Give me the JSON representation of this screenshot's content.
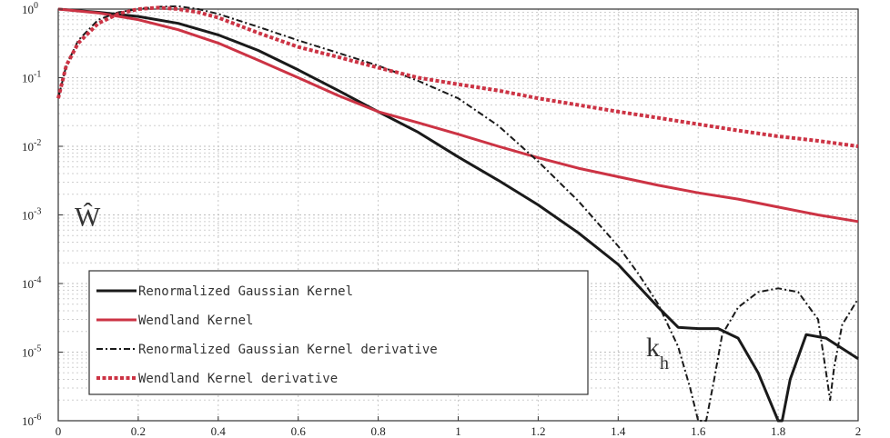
{
  "chart_data": {
    "type": "line",
    "title": "",
    "xlabel": "k_h",
    "ylabel": "Ŵ",
    "xlim": [
      0,
      2
    ],
    "ylim": [
      1e-06,
      1
    ],
    "yscale": "log",
    "grid": true,
    "legend_position": "bottom-left",
    "x_ticks": [
      "0",
      "0.2",
      "0.4",
      "0.6",
      "0.8",
      "1",
      "1.2",
      "1.4",
      "1.6",
      "1.8",
      "2"
    ],
    "y_ticks": [
      "10^0",
      "10^-1",
      "10^-2",
      "10^-3",
      "10^-4",
      "10^-5",
      "10^-6"
    ],
    "series": [
      {
        "name": "Renormalized Gaussian Kernel",
        "color": "#1a1a1a",
        "style": "solid",
        "x": [
          0,
          0.1,
          0.2,
          0.3,
          0.4,
          0.5,
          0.6,
          0.7,
          0.8,
          0.9,
          1.0,
          1.1,
          1.2,
          1.3,
          1.4,
          1.5,
          1.55,
          1.6,
          1.65,
          1.7,
          1.75,
          1.8,
          1.81,
          1.83,
          1.87,
          1.92,
          2.0
        ],
        "y": [
          1.0,
          0.9,
          0.78,
          0.62,
          0.42,
          0.25,
          0.13,
          0.065,
          0.032,
          0.016,
          0.007,
          0.0032,
          0.0014,
          0.00055,
          0.00019,
          4.5e-05,
          2.3e-05,
          2.2e-05,
          2.2e-05,
          1.6e-05,
          5e-06,
          4e-07,
          1e-07,
          4e-06,
          1.8e-05,
          1.6e-05,
          8e-06
        ]
      },
      {
        "name": "Wendland Kernel",
        "color": "#cc3344",
        "style": "solid",
        "x": [
          0,
          0.1,
          0.2,
          0.3,
          0.4,
          0.5,
          0.6,
          0.7,
          0.8,
          0.9,
          1.0,
          1.1,
          1.2,
          1.3,
          1.4,
          1.5,
          1.6,
          1.7,
          1.8,
          1.9,
          2.0
        ],
        "y": [
          1.0,
          0.88,
          0.7,
          0.5,
          0.32,
          0.18,
          0.1,
          0.055,
          0.032,
          0.022,
          0.015,
          0.01,
          0.0068,
          0.0048,
          0.0036,
          0.0027,
          0.0021,
          0.0017,
          0.0013,
          0.001,
          0.0008
        ]
      },
      {
        "name": "Renormalized Gaussian Kernel derivative",
        "color": "#1a1a1a",
        "style": "dashdot",
        "x": [
          0,
          0.02,
          0.05,
          0.1,
          0.15,
          0.2,
          0.25,
          0.3,
          0.35,
          0.4,
          0.5,
          0.6,
          0.7,
          0.8,
          0.9,
          1.0,
          1.1,
          1.2,
          1.3,
          1.4,
          1.45,
          1.5,
          1.55,
          1.58,
          1.6,
          1.62,
          1.64,
          1.66,
          1.7,
          1.75,
          1.8,
          1.85,
          1.9,
          1.92,
          1.93,
          1.94,
          1.96,
          2.0
        ],
        "y": [
          0.05,
          0.15,
          0.35,
          0.7,
          0.9,
          1.0,
          1.08,
          1.1,
          1.0,
          0.85,
          0.55,
          0.35,
          0.23,
          0.15,
          0.09,
          0.05,
          0.02,
          0.006,
          0.0016,
          0.00035,
          0.00014,
          5e-05,
          1.2e-05,
          3e-06,
          6e-07,
          8e-07,
          4e-06,
          1.8e-05,
          4.5e-05,
          7.5e-05,
          8.5e-05,
          7.5e-05,
          3e-05,
          5e-06,
          2e-06,
          6e-06,
          2.5e-05,
          6e-05
        ]
      },
      {
        "name": "Wendland Kernel derivative",
        "color": "#cc3344",
        "style": "dotted",
        "x": [
          0,
          0.02,
          0.05,
          0.1,
          0.15,
          0.2,
          0.25,
          0.3,
          0.35,
          0.4,
          0.5,
          0.6,
          0.7,
          0.8,
          0.9,
          1.0,
          1.1,
          1.2,
          1.3,
          1.4,
          1.5,
          1.6,
          1.7,
          1.8,
          1.9,
          2.0
        ],
        "y": [
          0.05,
          0.15,
          0.32,
          0.62,
          0.85,
          1.0,
          1.05,
          1.0,
          0.9,
          0.75,
          0.45,
          0.28,
          0.2,
          0.14,
          0.1,
          0.08,
          0.065,
          0.05,
          0.04,
          0.032,
          0.026,
          0.021,
          0.017,
          0.014,
          0.012,
          0.01
        ]
      }
    ]
  }
}
